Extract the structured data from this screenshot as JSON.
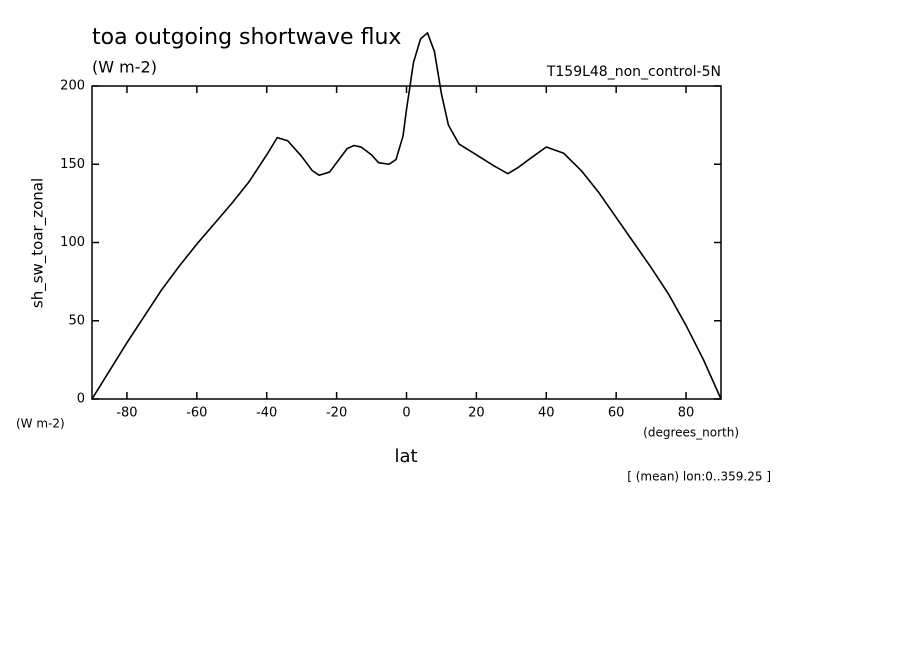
{
  "chart_data": {
    "type": "line",
    "title": "toa outgoing shortwave flux",
    "subtitle": "(W m-2)",
    "run_label": "T159L48_non_control-5N",
    "ylabel": "sh_sw_toar_zonal",
    "y_units": "(W m-2)",
    "xlabel": "lat",
    "x_units": "(degrees_north)",
    "note": "[ (mean) lon:0..359.25 ]",
    "x": [
      -90,
      -85,
      -80,
      -75,
      -70,
      -65,
      -60,
      -55,
      -50,
      -45,
      -40,
      -37,
      -34,
      -30,
      -27,
      -25,
      -22,
      -20,
      -17,
      -15,
      -13,
      -10,
      -8,
      -5,
      -3,
      -1,
      0,
      2,
      4,
      6,
      8,
      10,
      12,
      15,
      20,
      25,
      29,
      32,
      35,
      40,
      45,
      50,
      55,
      60,
      65,
      70,
      75,
      80,
      85,
      90
    ],
    "series": [
      {
        "name": "sh_sw_toar_zonal",
        "color": "#000000",
        "values": [
          0,
          18,
          36,
          53,
          70,
          85,
          99,
          112,
          125,
          139,
          156,
          167,
          165,
          155,
          146,
          143,
          145,
          151,
          160,
          162,
          161,
          156,
          151,
          150,
          153,
          168,
          185,
          215,
          230,
          234,
          222,
          195,
          175,
          163,
          156,
          149,
          144,
          148,
          153,
          161,
          157,
          146,
          132,
          116,
          100,
          84,
          67,
          47,
          25,
          0
        ]
      }
    ],
    "xlim": [
      -90,
      90
    ],
    "ylim": [
      0,
      200
    ],
    "xticks": [
      -80,
      -60,
      -40,
      -20,
      0,
      20,
      40,
      60,
      80
    ],
    "yticks": [
      0,
      50,
      100,
      150,
      200
    ]
  }
}
